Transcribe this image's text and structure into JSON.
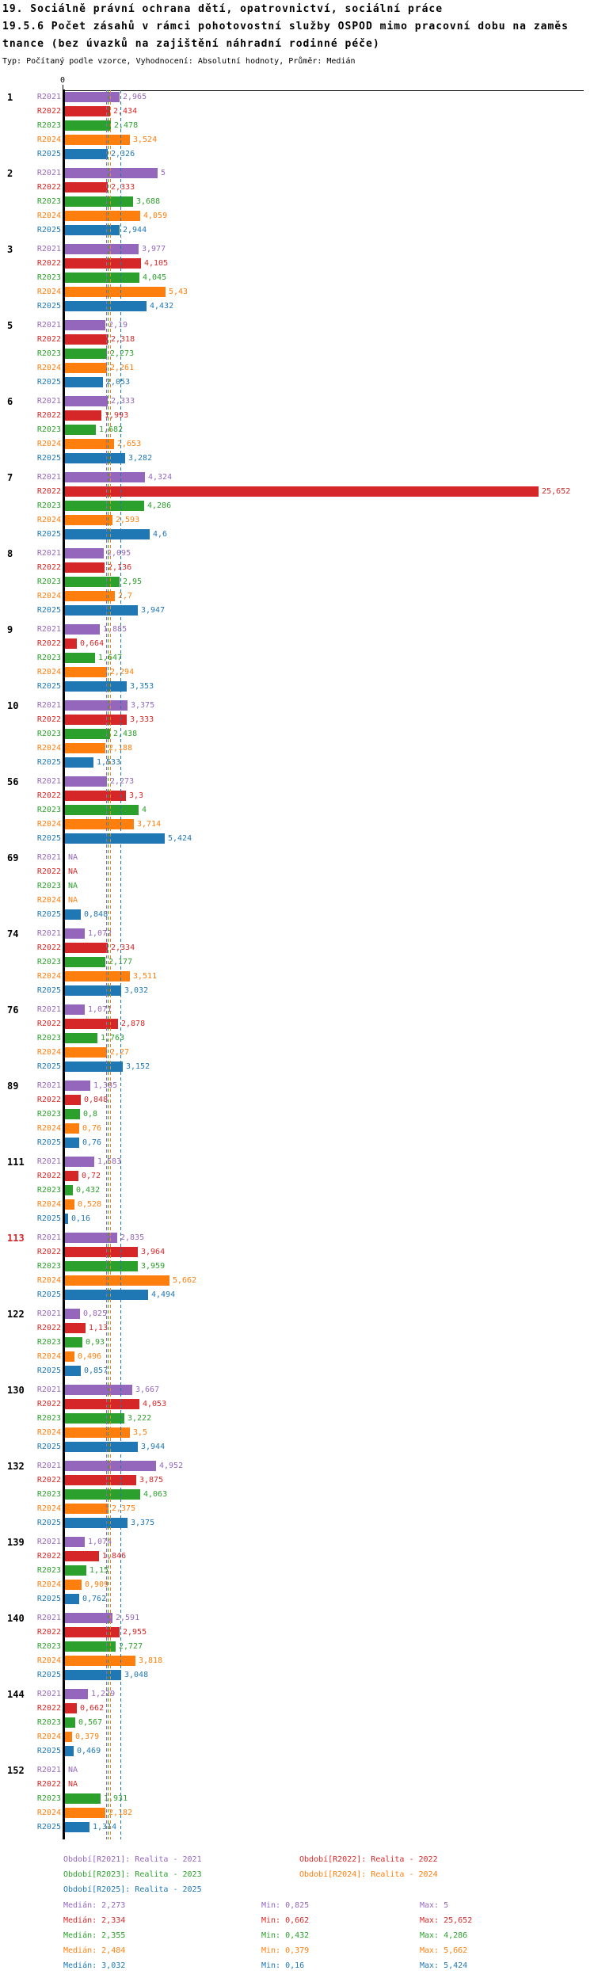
{
  "title": {
    "line1": "19. Sociálně právní ochrana dětí, opatrovnictví, sociální práce",
    "line2": "19.5.6 Počet zásahů v rámci pohotovostní služby OSPOD mimo pracovní dobu na zaměs",
    "line3": "tnance (bez úvazků na zajištění náhradní rodinné péče)",
    "meta": "Typ: Počítaný podle vzorce, Vyhodnocení: Absolutní hodnoty, Průměr: Medián"
  },
  "axis": {
    "zero_label": "0"
  },
  "chart_data": {
    "type": "bar",
    "orientation": "horizontal",
    "xlabel": "",
    "ylabel": "",
    "xlim": [
      0,
      28
    ],
    "grid": false,
    "series_labels": [
      "R2021",
      "R2022",
      "R2023",
      "R2024",
      "R2025"
    ],
    "series_colors": [
      "#9467bd",
      "#d62728",
      "#2ca02c",
      "#ff7f0e",
      "#1f77b4"
    ],
    "highlight_color": "#d62728",
    "na_text": "NA",
    "groups": [
      {
        "id": "1",
        "highlight": false,
        "labels": [
          "2,965",
          "2,434",
          "2,478",
          "3,524",
          "2,326"
        ],
        "values": [
          2.965,
          2.434,
          2.478,
          3.524,
          2.326
        ]
      },
      {
        "id": "2",
        "highlight": false,
        "labels": [
          "5",
          "2,333",
          "3,688",
          "4,059",
          "2,944"
        ],
        "values": [
          5,
          2.333,
          3.688,
          4.059,
          2.944
        ]
      },
      {
        "id": "3",
        "highlight": false,
        "labels": [
          "3,977",
          "4,105",
          "4,045",
          "5,43",
          "4,432"
        ],
        "values": [
          3.977,
          4.105,
          4.045,
          5.43,
          4.432
        ]
      },
      {
        "id": "5",
        "highlight": false,
        "labels": [
          "2,19",
          "2,318",
          "2,273",
          "2,261",
          "2,053"
        ],
        "values": [
          2.19,
          2.318,
          2.273,
          2.261,
          2.053
        ]
      },
      {
        "id": "6",
        "highlight": false,
        "labels": [
          "2,333",
          "1,993",
          "1,682",
          "2,653",
          "3,282"
        ],
        "values": [
          2.333,
          1.993,
          1.682,
          2.653,
          3.282
        ]
      },
      {
        "id": "7",
        "highlight": false,
        "labels": [
          "4,324",
          "25,652",
          "4,286",
          "2,593",
          "4,6"
        ],
        "values": [
          4.324,
          25.652,
          4.286,
          2.593,
          4.6
        ]
      },
      {
        "id": "8",
        "highlight": false,
        "labels": [
          "2,095",
          "2,136",
          "2,95",
          "2,7",
          "3,947"
        ],
        "values": [
          2.095,
          2.136,
          2.95,
          2.7,
          3.947
        ]
      },
      {
        "id": "9",
        "highlight": false,
        "labels": [
          "1,885",
          "0,664",
          "1,647",
          "2,294",
          "3,353"
        ],
        "values": [
          1.885,
          0.664,
          1.647,
          2.294,
          3.353
        ]
      },
      {
        "id": "10",
        "highlight": false,
        "labels": [
          "3,375",
          "3,333",
          "2,438",
          "2,188",
          "1,533"
        ],
        "values": [
          3.375,
          3.333,
          2.438,
          2.188,
          1.533
        ]
      },
      {
        "id": "56",
        "highlight": false,
        "labels": [
          "2,273",
          "3,3",
          "4",
          "3,714",
          "5,424"
        ],
        "values": [
          2.273,
          3.3,
          4,
          3.714,
          5.424
        ]
      },
      {
        "id": "69",
        "highlight": false,
        "labels": [
          "NA",
          "NA",
          "NA",
          "NA",
          "0,848"
        ],
        "values": [
          null,
          null,
          null,
          null,
          0.848
        ]
      },
      {
        "id": "74",
        "highlight": false,
        "labels": [
          "1,072",
          "2,334",
          "2,177",
          "3,511",
          "3,032"
        ],
        "values": [
          1.072,
          2.334,
          2.177,
          3.511,
          3.032
        ]
      },
      {
        "id": "76",
        "highlight": false,
        "labels": [
          "1,071",
          "2,878",
          "1,763",
          "2,27",
          "3,152"
        ],
        "values": [
          1.071,
          2.878,
          1.763,
          2.27,
          3.152
        ]
      },
      {
        "id": "89",
        "highlight": false,
        "labels": [
          "1,385",
          "0,848",
          "0,8",
          "0,76",
          "0,76"
        ],
        "values": [
          1.385,
          0.848,
          0.8,
          0.76,
          0.76
        ]
      },
      {
        "id": "111",
        "highlight": false,
        "labels": [
          "1,583",
          "0,72",
          "0,432",
          "0,528",
          "0,16"
        ],
        "values": [
          1.583,
          0.72,
          0.432,
          0.528,
          0.16
        ]
      },
      {
        "id": "113",
        "highlight": true,
        "labels": [
          "2,835",
          "3,964",
          "3,959",
          "5,662",
          "4,494"
        ],
        "values": [
          2.835,
          3.964,
          3.959,
          5.662,
          4.494
        ]
      },
      {
        "id": "122",
        "highlight": false,
        "labels": [
          "0,825",
          "1,13",
          "0,93",
          "0,496",
          "0,857"
        ],
        "values": [
          0.825,
          1.13,
          0.93,
          0.496,
          0.857
        ]
      },
      {
        "id": "130",
        "highlight": false,
        "labels": [
          "3,667",
          "4,053",
          "3,222",
          "3,5",
          "3,944"
        ],
        "values": [
          3.667,
          4.053,
          3.222,
          3.5,
          3.944
        ]
      },
      {
        "id": "132",
        "highlight": false,
        "labels": [
          "4,952",
          "3,875",
          "4,063",
          "2,375",
          "3,375"
        ],
        "values": [
          4.952,
          3.875,
          4.063,
          2.375,
          3.375
        ]
      },
      {
        "id": "139",
        "highlight": false,
        "labels": [
          "1,074",
          "1,846",
          "1,15",
          "0,909",
          "0,762"
        ],
        "values": [
          1.074,
          1.846,
          1.15,
          0.909,
          0.762
        ]
      },
      {
        "id": "140",
        "highlight": false,
        "labels": [
          "2,591",
          "2,955",
          "2,727",
          "3,818",
          "3,048"
        ],
        "values": [
          2.591,
          2.955,
          2.727,
          3.818,
          3.048
        ]
      },
      {
        "id": "144",
        "highlight": false,
        "labels": [
          "1,229",
          "0,662",
          "0,567",
          "0,379",
          "0,469"
        ],
        "values": [
          1.229,
          0.662,
          0.567,
          0.379,
          0.469
        ]
      },
      {
        "id": "152",
        "highlight": false,
        "labels": [
          "NA",
          "NA",
          "1,931",
          "2,182",
          "1,314"
        ],
        "values": [
          null,
          null,
          1.931,
          2.182,
          1.314
        ]
      }
    ],
    "medians": [
      2.273,
      2.334,
      2.355,
      2.484,
      3.032
    ]
  },
  "legend": {
    "items": [
      {
        "label": "Období[R2021]: Realita - 2021",
        "color": "#9467bd"
      },
      {
        "label": "Období[R2022]: Realita - 2022",
        "color": "#d62728"
      },
      {
        "label": "Období[R2023]: Realita - 2023",
        "color": "#2ca02c"
      },
      {
        "label": "Období[R2024]: Realita - 2024",
        "color": "#ff7f0e"
      },
      {
        "label": "Období[R2025]: Realita - 2025",
        "color": "#1f77b4"
      }
    ]
  },
  "stats": {
    "rows": [
      {
        "median": "Medián: 2,273",
        "min": "Min: 0,825",
        "max": "Max: 5",
        "color": "#9467bd"
      },
      {
        "median": "Medián: 2,334",
        "min": "Min: 0,662",
        "max": "Max: 25,652",
        "color": "#d62728"
      },
      {
        "median": "Medián: 2,355",
        "min": "Min: 0,432",
        "max": "Max: 4,286",
        "color": "#2ca02c"
      },
      {
        "median": "Medián: 2,484",
        "min": "Min: 0,379",
        "max": "Max: 5,662",
        "color": "#ff7f0e"
      },
      {
        "median": "Medián: 3,032",
        "min": "Min: 0,16",
        "max": "Max: 5,424",
        "color": "#1f77b4"
      }
    ]
  }
}
